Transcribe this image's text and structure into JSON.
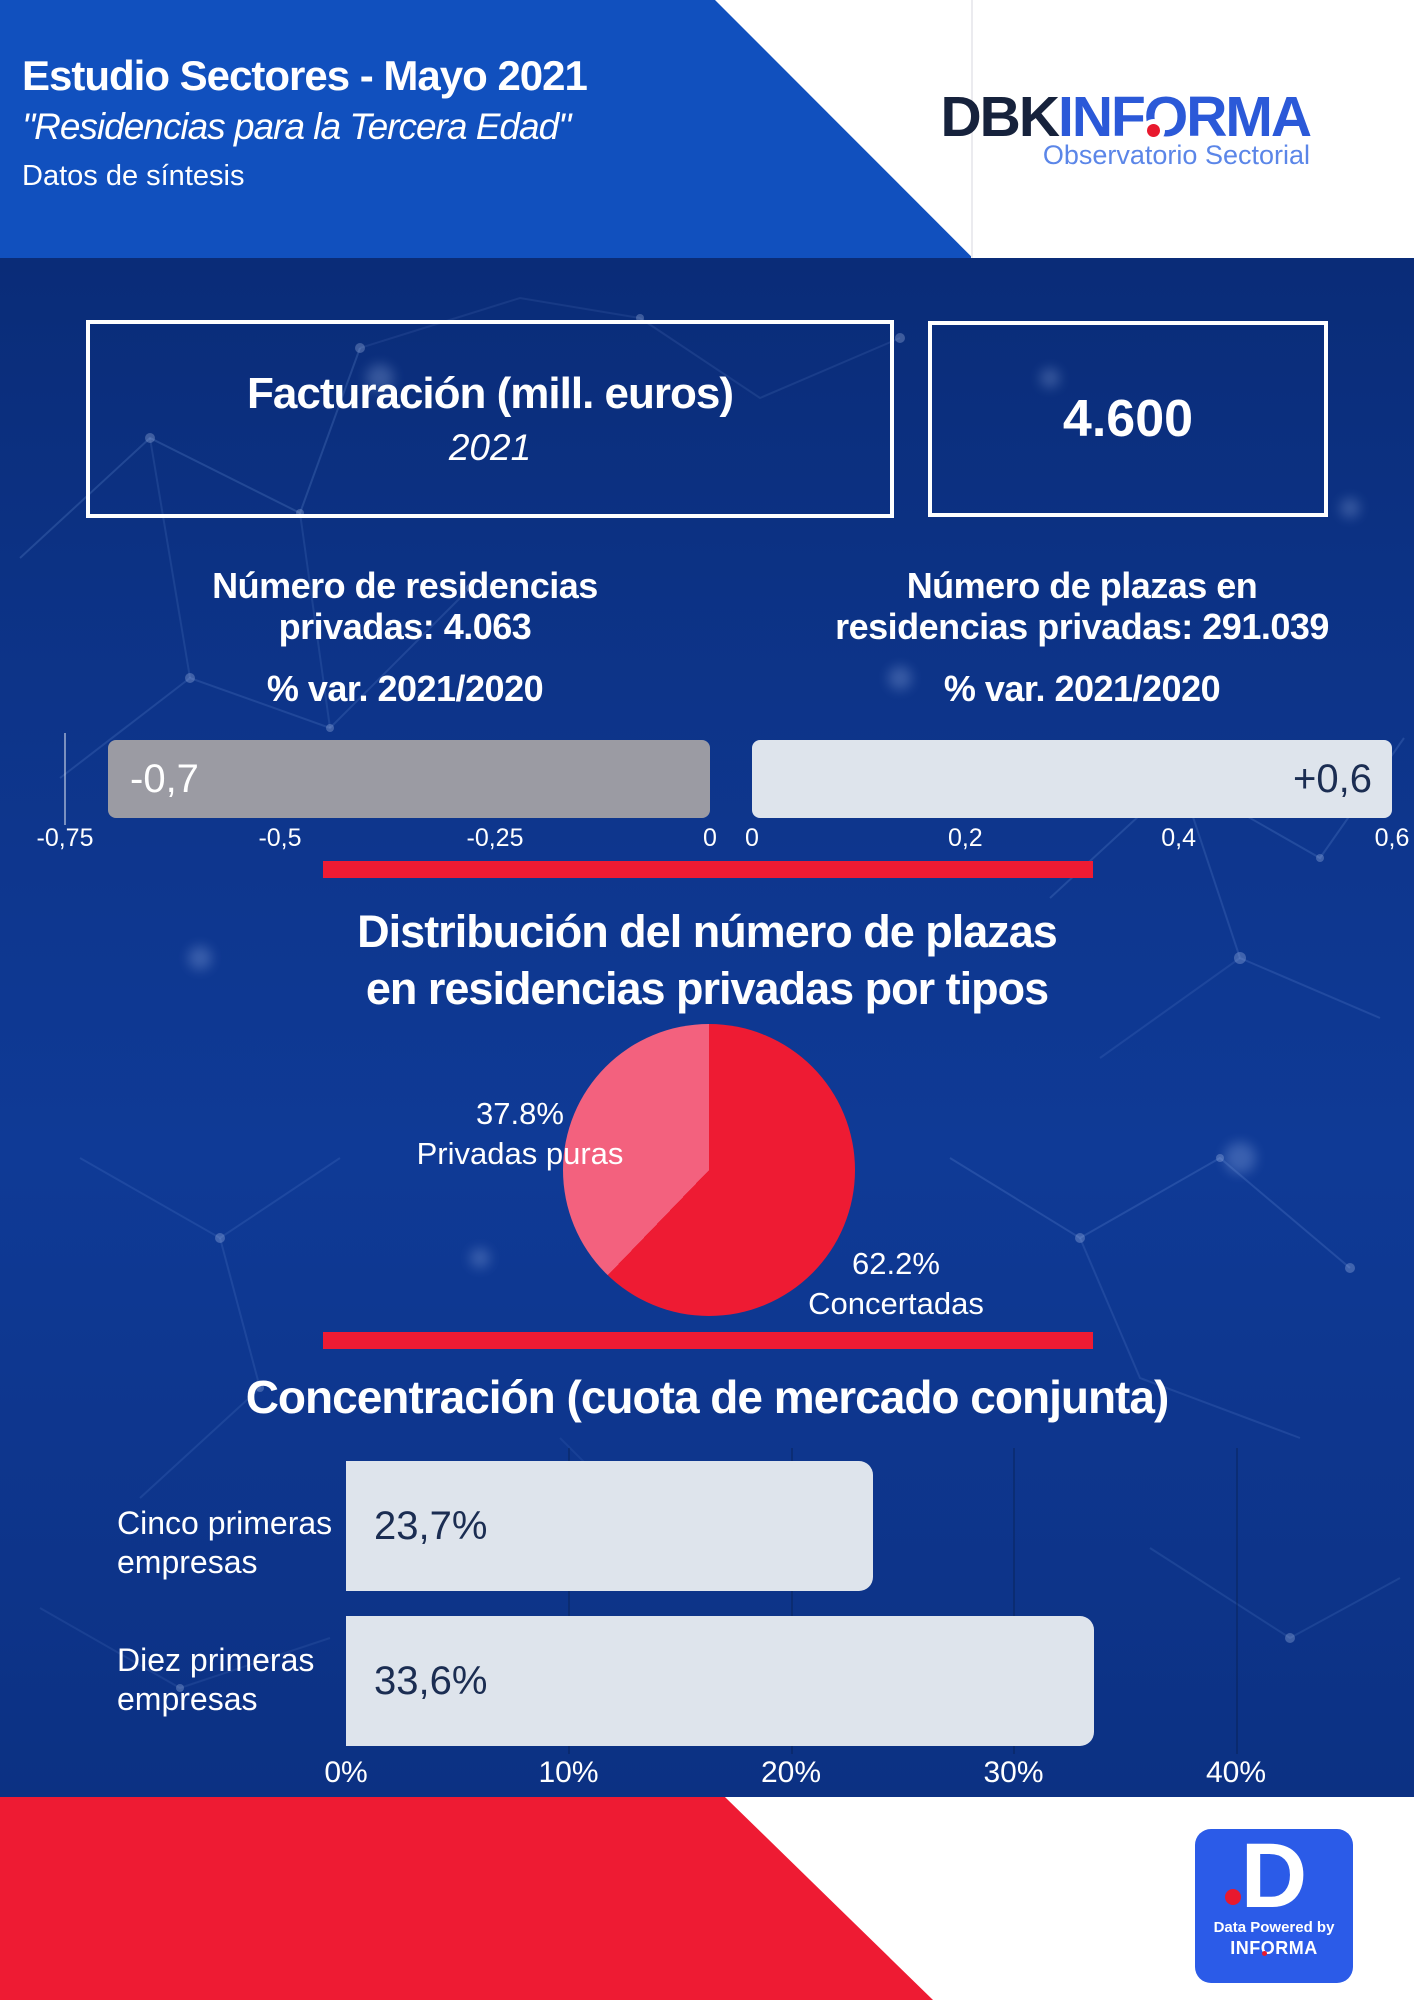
{
  "header": {
    "title": "Estudio Sectores - Mayo 2021",
    "subtitle": "\"Residencias para la Tercera Edad\"",
    "tagline": "Datos de síntesis",
    "logo": {
      "dbk": "DBK",
      "informa_pre": "INF",
      "informa_o": "O",
      "informa_post": "RMA",
      "sub": "Observatorio Sectorial"
    }
  },
  "facturacion": {
    "title": "Facturación (mill. euros)",
    "year": "2021",
    "value": "4.600"
  },
  "colors": {
    "header_blue": "#1150BE",
    "content_navy": "#0D3489",
    "accent_red": "#EE1B33",
    "pie_pink": "#F3617E",
    "bar_gray": "#9B9BA3",
    "bar_light": "#DEE4EC",
    "badge_blue": "#2B5BE8"
  },
  "chart_data": [
    {
      "id": "var_residencias",
      "type": "bar",
      "orientation": "horizontal",
      "context_line1": "Número de residencias",
      "context_line2": "privadas: 4.063",
      "title": "% var. 2021/2020",
      "values": [
        -0.7
      ],
      "value_labels": [
        "-0,7"
      ],
      "ticks": [
        "-0,75",
        "-0,5",
        "-0,25",
        "0"
      ],
      "xlim": [
        -0.75,
        0
      ],
      "bar_color": "#9B9BA3"
    },
    {
      "id": "var_plazas",
      "type": "bar",
      "orientation": "horizontal",
      "context_line1": "Número de plazas en",
      "context_line2": "residencias privadas: 291.039",
      "title": "% var. 2021/2020",
      "values": [
        0.6
      ],
      "value_labels": [
        "+0,6"
      ],
      "ticks": [
        "0",
        "0,2",
        "0,4",
        "0,6"
      ],
      "xlim": [
        0,
        0.6
      ],
      "bar_color": "#DEE4EC"
    },
    {
      "id": "distribucion_plazas",
      "type": "pie",
      "title_line1": "Distribución del número de plazas",
      "title_line2": "en residencias privadas por tipos",
      "start": "top",
      "direction": "clockwise",
      "slices": [
        {
          "label": "Concertadas",
          "value": 62.2,
          "value_label": "62.2%",
          "color": "#EE1B33"
        },
        {
          "label": "Privadas puras",
          "value": 37.8,
          "value_label": "37.8%",
          "color": "#F3617E"
        }
      ]
    },
    {
      "id": "concentracion",
      "type": "bar",
      "orientation": "horizontal",
      "title": "Concentración (cuota de mercado conjunta)",
      "categories": [
        [
          "Cinco primeras",
          "empresas"
        ],
        [
          "Diez primeras",
          "empresas"
        ]
      ],
      "values": [
        23.7,
        33.6
      ],
      "value_labels": [
        "23,7%",
        "33,6%"
      ],
      "ticks": [
        "0%",
        "10%",
        "20%",
        "30%",
        "40%"
      ],
      "xlim": [
        0,
        40
      ],
      "bar_color": "#DEE4EC",
      "grid": true,
      "legend": "none"
    }
  ],
  "footer": {
    "badge": {
      "d_letter": "D",
      "data_powered": "Data Powered by",
      "informa_pre": "INF",
      "informa_o": "O",
      "informa_post": "RMA"
    }
  }
}
